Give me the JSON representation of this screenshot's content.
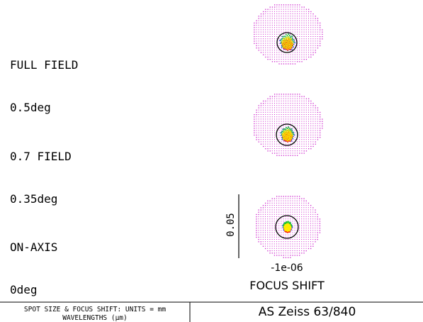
{
  "fields": [
    {
      "name": "FULL FIELD",
      "angle": "0.5deg"
    },
    {
      "name": "0.7 FIELD",
      "angle": "0.35deg"
    },
    {
      "name": "ON-AXIS",
      "angle": "0deg"
    }
  ],
  "scale_bar": {
    "label": "0.05"
  },
  "focus": {
    "value": "-1e-06",
    "axis_label": "FOCUS SHIFT"
  },
  "footer": {
    "line1": "SPOT SIZE & FOCUS SHIFT: UNITS = mm",
    "line2": "WAVELENGTHS (μm)",
    "title": "AS Zeiss 63/840"
  },
  "colors": {
    "outer_spot": "#cc22cc",
    "core_yellow": "#ffee00",
    "core_green": "#22cc22",
    "core_red": "#ff2200",
    "core_blue": "#2244ff",
    "airy_circle": "#000000"
  }
}
